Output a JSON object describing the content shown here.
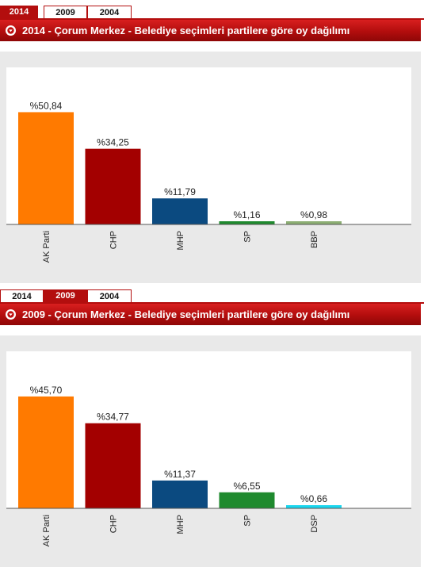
{
  "panels": [
    {
      "tabs": [
        {
          "label": "2014",
          "active": true
        },
        {
          "label": "2009",
          "active": false
        },
        {
          "label": "2004",
          "active": false
        }
      ],
      "title": "2014 - Çorum Merkez - Belediye seçimleri partilere göre oy dağılımı",
      "info_icon": "info-circle-icon",
      "chart_data": {
        "type": "bar",
        "categories": [
          "AK Parti",
          "CHP",
          "MHP",
          "SP",
          "BBP"
        ],
        "values": [
          50.84,
          34.25,
          11.79,
          1.16,
          0.98
        ],
        "data_labels": [
          "%50,84",
          "%34,25",
          "%11,79",
          "%1,16",
          "%0,98"
        ],
        "colors": [
          "#ff7a00",
          "#a30000",
          "#0b4a80",
          "#1f8a2e",
          "#8cae73"
        ],
        "title": "",
        "xlabel": "",
        "ylabel": "",
        "ylim": [
          0,
          51
        ],
        "grid": false,
        "legend": "none"
      }
    },
    {
      "tabs": [
        {
          "label": "2014",
          "active": false
        },
        {
          "label": "2009",
          "active": true
        },
        {
          "label": "2004",
          "active": false
        }
      ],
      "title": "2009 - Çorum Merkez - Belediye seçimleri partilere göre oy dağılımı",
      "info_icon": "info-circle-icon",
      "chart_data": {
        "type": "bar",
        "categories": [
          "AK Parti",
          "CHP",
          "MHP",
          "SP",
          "DSP"
        ],
        "values": [
          45.7,
          34.77,
          11.37,
          6.55,
          0.66
        ],
        "data_labels": [
          "%45,70",
          "%34,77",
          "%11,37",
          "%6,55",
          "%0,66"
        ],
        "colors": [
          "#ff7a00",
          "#a30000",
          "#0b4a80",
          "#1f8a2e",
          "#19d6ee"
        ],
        "title": "",
        "xlabel": "",
        "ylabel": "",
        "ylim": [
          0,
          46
        ],
        "grid": false,
        "legend": "none"
      }
    }
  ]
}
